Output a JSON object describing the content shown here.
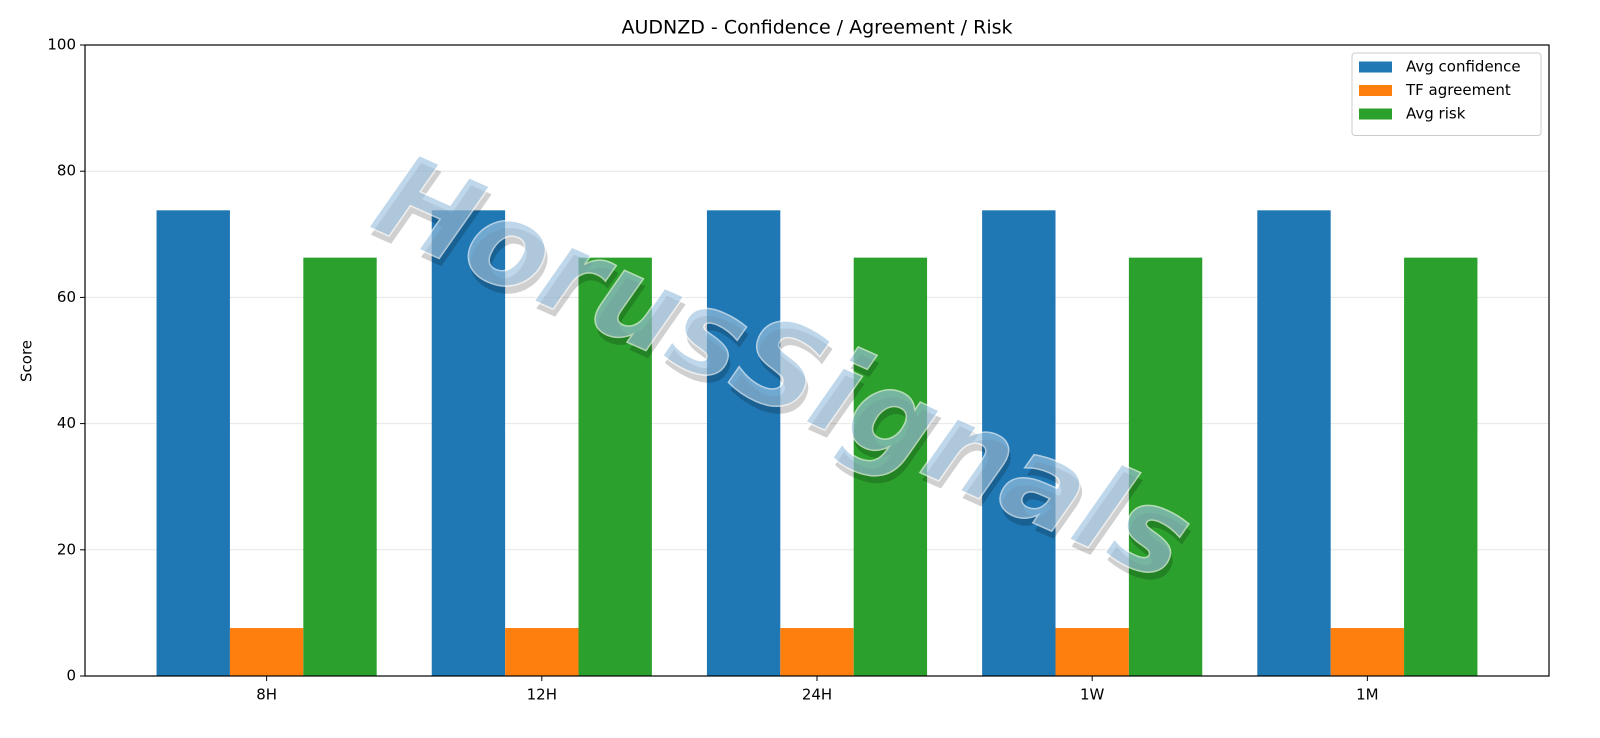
{
  "chart_data": {
    "type": "bar",
    "title": "AUDNZD - Confidence / Agreement / Risk",
    "y_label": "Score",
    "watermark": "HorusSignals",
    "categories": [
      "8H",
      "12H",
      "24H",
      "1W",
      "1M"
    ],
    "series": [
      {
        "name": "Avg confidence",
        "color": "#1f77b4",
        "values": [
          73.8,
          73.8,
          73.8,
          73.8,
          73.8
        ]
      },
      {
        "name": "TF agreement",
        "color": "#ff7f0e",
        "values": [
          7.6,
          7.6,
          7.6,
          7.6,
          7.6
        ]
      },
      {
        "name": "Avg risk",
        "color": "#2ca02c",
        "values": [
          66.3,
          66.3,
          66.3,
          66.3,
          66.3
        ]
      }
    ],
    "ylim": [
      0,
      100
    ],
    "yticks": [
      0,
      20,
      40,
      60,
      80,
      100
    ],
    "grid": true,
    "legend": "upper right"
  }
}
